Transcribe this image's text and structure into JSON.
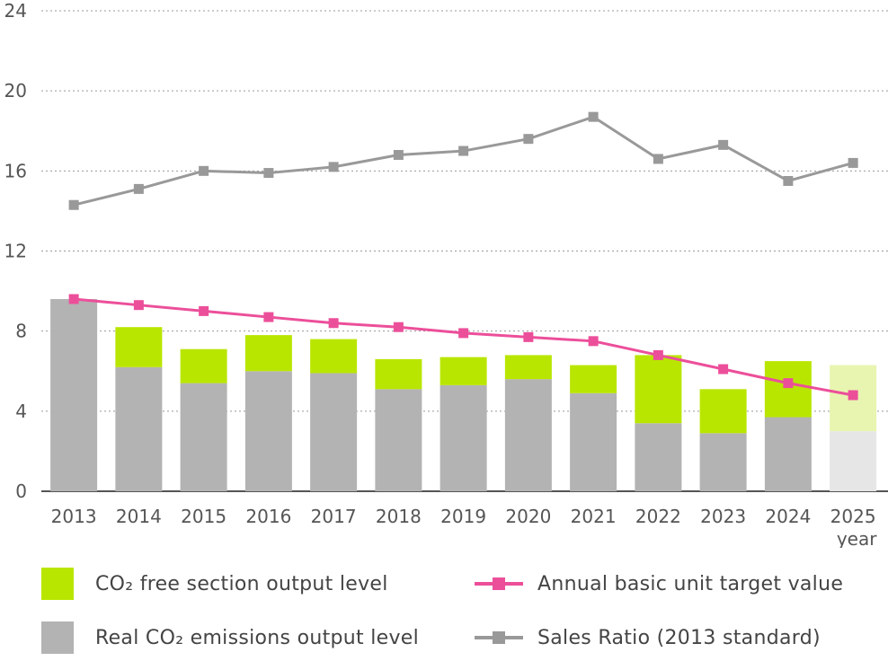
{
  "chart_data": {
    "type": "bar",
    "categories": [
      "2013",
      "2014",
      "2015",
      "2016",
      "2017",
      "2018",
      "2019",
      "2020",
      "2021",
      "2022",
      "2023",
      "2024",
      "2025"
    ],
    "x_unit_label": "year",
    "ylim": [
      0,
      24
    ],
    "yticks": [
      0,
      4,
      8,
      12,
      16,
      20,
      24
    ],
    "grid": true,
    "stacked": true,
    "projected_categories": [
      "2025"
    ],
    "series": [
      {
        "name": "Real CO₂ emissions output level",
        "kind": "bar",
        "color": "#b3b3b3",
        "projected_color": "#e6e6e6",
        "values": [
          9.6,
          6.2,
          5.4,
          6.0,
          5.9,
          5.1,
          5.3,
          5.6,
          4.9,
          3.4,
          2.9,
          3.7,
          3.0
        ]
      },
      {
        "name": "CO₂ free section output level",
        "kind": "bar",
        "color": "#b9e600",
        "projected_color": "#e8f5b0",
        "values": [
          0,
          2.0,
          1.7,
          1.8,
          1.7,
          1.5,
          1.4,
          1.2,
          1.4,
          3.4,
          2.2,
          2.8,
          3.3
        ]
      },
      {
        "name": "Annual basic unit target value",
        "kind": "line",
        "color": "#ec4f9a",
        "values": [
          9.6,
          9.3,
          9.0,
          8.7,
          8.4,
          8.2,
          7.9,
          7.7,
          7.5,
          6.8,
          6.1,
          5.4,
          4.8
        ]
      },
      {
        "name": "Sales Ratio (2013 standard)",
        "kind": "line",
        "color": "#999999",
        "values": [
          14.3,
          15.1,
          16.0,
          15.9,
          16.2,
          16.8,
          17.0,
          17.6,
          18.7,
          16.6,
          17.3,
          15.5,
          16.4
        ]
      }
    ]
  },
  "legend": {
    "green_bar": "CO₂ free section output level",
    "gray_bar": "Real CO₂ emissions output level",
    "pink_line": "Annual basic unit target value",
    "gray_line": "Sales Ratio (2013 standard)"
  }
}
